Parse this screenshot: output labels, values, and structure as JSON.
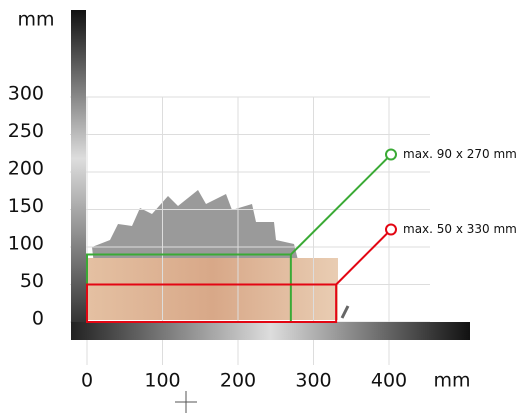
{
  "chart_data": {
    "type": "rect",
    "y_label": "mm",
    "x_label": "mm",
    "xlim": [
      0,
      400
    ],
    "ylim": [
      0,
      300
    ],
    "xticks": [
      0,
      100,
      200,
      300,
      400
    ],
    "yticks": [
      0,
      50,
      100,
      150,
      200,
      250,
      300
    ],
    "grid": true,
    "series": [
      {
        "name": "max. 90 x 270 mm",
        "color": "#3aaa35",
        "width": 270,
        "height": 90
      },
      {
        "name": "max. 50 x 330 mm",
        "color": "#e30613",
        "width": 330,
        "height": 50
      }
    ]
  }
}
